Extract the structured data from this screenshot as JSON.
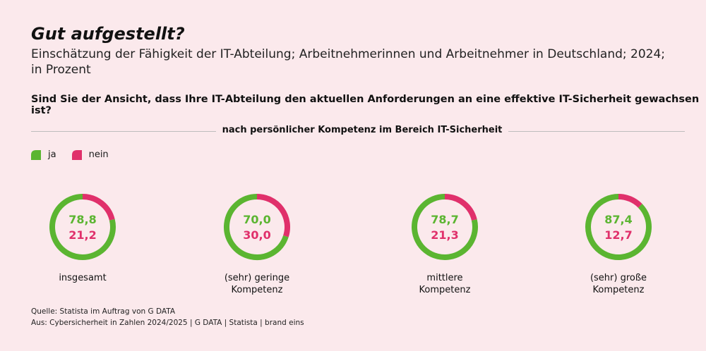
{
  "header": {
    "title": "Gut aufgestellt?",
    "subtitle": "Einschätzung der Fähigkeit der IT-Abteilung; Arbeitnehmerinnen und Arbeitnehmer in Deutschland; 2024; in Prozent",
    "question": "Sind Sie der Ansicht, dass Ihre IT-Abteilung den aktuellen Anforderungen an eine effektive IT-Sicherheit gewachsen ist?",
    "divider_label": "nach persönlicher Kompetenz im Bereich IT-Sicherheit"
  },
  "legend": [
    {
      "label": "ja",
      "color": "#5bb531"
    },
    {
      "label": "nein",
      "color": "#e0306b"
    }
  ],
  "chart_data": {
    "type": "pie",
    "title": "Gut aufgestellt?",
    "categories": [
      "insgesamt",
      "(sehr) geringe Kompetenz",
      "mittlere Kompetenz",
      "(sehr) große Kompetenz"
    ],
    "category_lines": [
      [
        "insgesamt"
      ],
      [
        "(sehr) geringe",
        "Kompetenz"
      ],
      [
        "mittlere",
        "Kompetenz"
      ],
      [
        "(sehr) große",
        "Kompetenz"
      ]
    ],
    "series": [
      {
        "name": "ja",
        "values": [
          78.8,
          70.0,
          78.7,
          87.4
        ],
        "labels": [
          "78,8",
          "70,0",
          "78,7",
          "87,4"
        ]
      },
      {
        "name": "nein",
        "values": [
          21.2,
          30.0,
          21.3,
          12.7
        ],
        "labels": [
          "21,2",
          "30,0",
          "21,3",
          "12,7"
        ]
      }
    ],
    "colors": {
      "ja": "#5bb531",
      "nein": "#e0306b"
    },
    "unit": "Prozent"
  },
  "footer": {
    "source": "Quelle: Statista im Auftrag von G DATA",
    "publication": "Aus: Cybersicherheit in Zahlen 2024/2025 | G DATA | Statista | brand eins"
  }
}
